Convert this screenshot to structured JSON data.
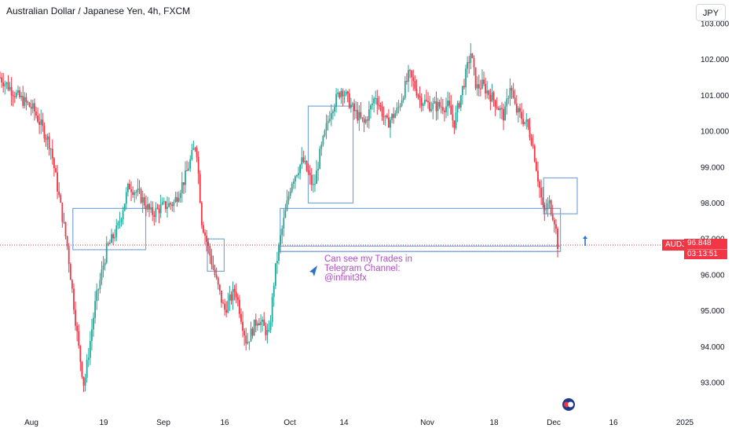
{
  "header": {
    "title": "Australian Dollar / Japanese Yen, 4h, FXCM",
    "currency_button": "JPY"
  },
  "price_axis": {
    "symbol_label": "AUDJPY",
    "last_price": "96.848",
    "countdown": "03:13:51",
    "colors": {
      "bull": "#26a69a",
      "bear": "#f23645",
      "zone": "#7ba6d9",
      "annotation": "#b04dc8"
    }
  },
  "annotation": {
    "lines": [
      "Can see my Trades in",
      "Telegram Channel:",
      "@infinit3fx"
    ]
  },
  "chart_data": {
    "type": "candlestick",
    "symbol": "AUDJPY",
    "timeframe": "4h",
    "ylim": [
      92.7,
      103.1
    ],
    "y_ticks": [
      "93.000",
      "94.000",
      "95.000",
      "96.000",
      "97.000",
      "98.000",
      "99.000",
      "100.000",
      "101.000",
      "102.000",
      "103.000"
    ],
    "x_ticks": [
      "Aug",
      "19",
      "Sep",
      "16",
      "Oct",
      "14",
      "Nov",
      "18",
      "Dec",
      "16",
      "2025"
    ],
    "last_price": 96.848,
    "price_path": [
      [
        0,
        101.5
      ],
      [
        3,
        101.0
      ],
      [
        6,
        100.6
      ],
      [
        9,
        99.6
      ],
      [
        12,
        96.8
      ],
      [
        14,
        94.0
      ],
      [
        15,
        92.9
      ],
      [
        17,
        95.2
      ],
      [
        19,
        96.7
      ],
      [
        21,
        97.3
      ],
      [
        23,
        98.5
      ],
      [
        25,
        98.2
      ],
      [
        27,
        97.7
      ],
      [
        29,
        97.9
      ],
      [
        31,
        98.0
      ],
      [
        33,
        98.7
      ],
      [
        35,
        99.7
      ],
      [
        36,
        97.5
      ],
      [
        38,
        96.2
      ],
      [
        40,
        95.0
      ],
      [
        42,
        95.6
      ],
      [
        44,
        94.1
      ],
      [
        46,
        94.8
      ],
      [
        48,
        94.3
      ],
      [
        49,
        96.0
      ],
      [
        50,
        97.0
      ],
      [
        52,
        98.6
      ],
      [
        54,
        99.2
      ],
      [
        56,
        98.4
      ],
      [
        57,
        99.3
      ],
      [
        59,
        100.6
      ],
      [
        61,
        101.2
      ],
      [
        63,
        100.6
      ],
      [
        65,
        100.2
      ],
      [
        67,
        101.0
      ],
      [
        69,
        100.2
      ],
      [
        71,
        100.6
      ],
      [
        73,
        101.6
      ],
      [
        75,
        100.9
      ],
      [
        77,
        100.7
      ],
      [
        80,
        100.7
      ],
      [
        81,
        100.2
      ],
      [
        83,
        101.5
      ],
      [
        84,
        102.2
      ],
      [
        85,
        101.2
      ],
      [
        86,
        101.3
      ],
      [
        88,
        100.9
      ],
      [
        90,
        100.4
      ],
      [
        91,
        101.3
      ],
      [
        92,
        100.6
      ],
      [
        94,
        100.2
      ],
      [
        95,
        99.7
      ],
      [
        96,
        98.7
      ],
      [
        97,
        97.7
      ],
      [
        98,
        98.0
      ],
      [
        99,
        97.5
      ],
      [
        99.5,
        96.85
      ]
    ],
    "zones": [
      {
        "from": 13,
        "to": 26,
        "low": 96.7,
        "high": 97.85
      },
      {
        "from": 37,
        "to": 40,
        "low": 96.1,
        "high": 97.0
      },
      {
        "from": 50,
        "to": 100,
        "low": 96.65,
        "high": 97.85
      },
      {
        "from": 50,
        "to": 100,
        "low": 96.65,
        "high": 96.8
      },
      {
        "from": 55,
        "to": 63,
        "low": 98.0,
        "high": 100.7
      },
      {
        "from": 97,
        "to": 103,
        "low": 97.7,
        "high": 98.7
      }
    ]
  }
}
